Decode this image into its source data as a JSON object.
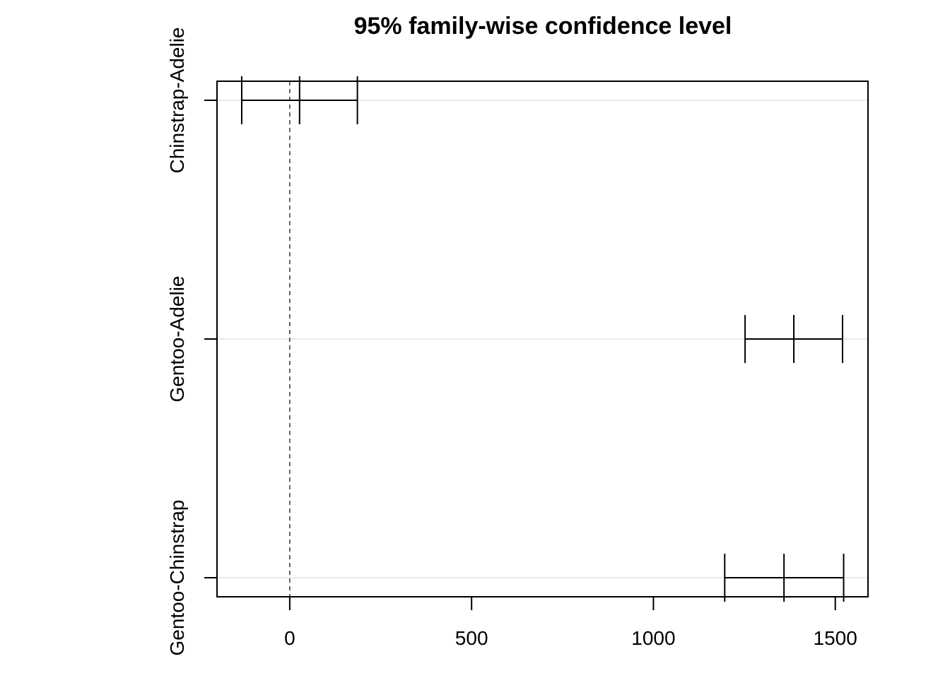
{
  "chart_data": {
    "type": "interval",
    "title": "95% family-wise confidence level",
    "xlabel": "",
    "ylabel": "",
    "xlim": [
      -200,
      1590
    ],
    "x_ticks": [
      0,
      500,
      1000,
      1500
    ],
    "x_tick_labels": [
      "0",
      "500",
      "1000",
      "1500"
    ],
    "reference_line_x": 0,
    "grid": true,
    "comparisons": [
      {
        "label": "Chinstrap-Adelie",
        "lwr": -132,
        "diff": 27,
        "upr": 186
      },
      {
        "label": "Gentoo-Adelie",
        "lwr": 1252,
        "diff": 1386,
        "upr": 1520
      },
      {
        "label": "Gentoo-Chinstrap",
        "lwr": 1196,
        "diff": 1359,
        "upr": 1523
      }
    ]
  }
}
